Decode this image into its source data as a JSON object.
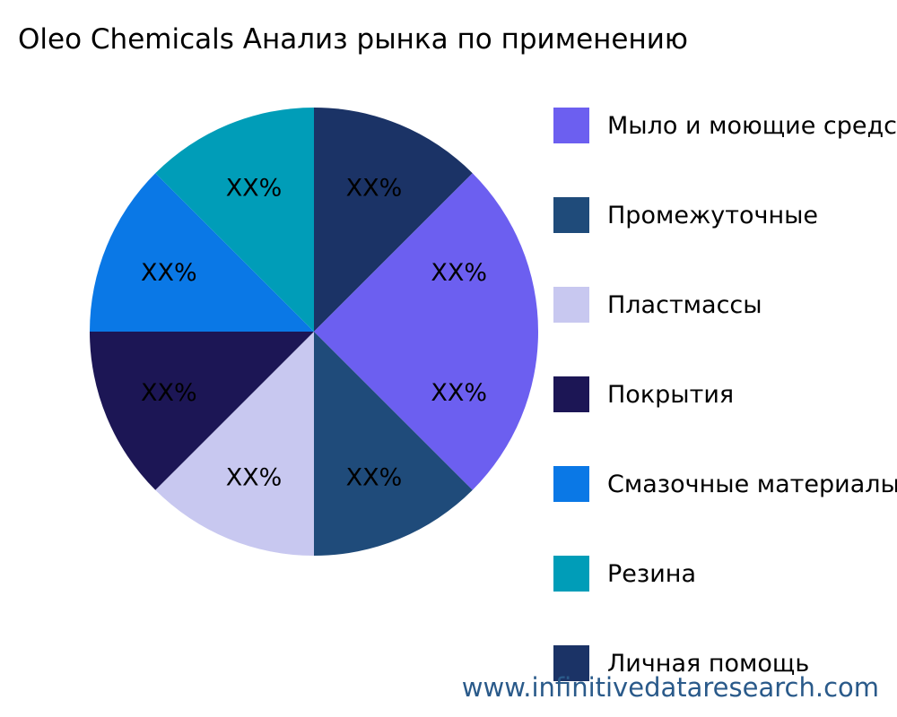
{
  "chart_data": {
    "type": "pie",
    "title": "Oleo Chemicals Анализ рынка по применению",
    "slices": [
      {
        "name": "Личная помощь",
        "value": 12.5,
        "label": "XX%",
        "color": "#1b3366"
      },
      {
        "name": "Мыло и моющие средства",
        "value": 12.5,
        "label": "XX%",
        "color": "#6c5ff0"
      },
      {
        "name": "",
        "value": 12.5,
        "label": "XX%",
        "color": "#6c5ff0"
      },
      {
        "name": "Промежуточные",
        "value": 12.5,
        "label": "XX%",
        "color": "#1f4b7a"
      },
      {
        "name": "Пластмассы",
        "value": 12.5,
        "label": "XX%",
        "color": "#c8c8f0"
      },
      {
        "name": "Покрытия",
        "value": 12.5,
        "label": "XX%",
        "color": "#1c1655"
      },
      {
        "name": "Смазочные материалы",
        "value": 12.5,
        "label": "XX%",
        "color": "#0a78e6"
      },
      {
        "name": "Резина",
        "value": 12.5,
        "label": "XX%",
        "color": "#009db8"
      }
    ],
    "legend": [
      {
        "label": "Мыло и моющие средства",
        "color": "#6c5ff0"
      },
      {
        "label": "Промежуточные",
        "color": "#1f4b7a"
      },
      {
        "label": "Пластмассы",
        "color": "#c8c8f0"
      },
      {
        "label": "Покрытия",
        "color": "#1c1655"
      },
      {
        "label": "Смазочные материалы",
        "color": "#0a78e6"
      },
      {
        "label": "Резина",
        "color": "#009db8"
      },
      {
        "label": "Личная помощь",
        "color": "#1b3366"
      }
    ],
    "legend_position": "right",
    "direction": "clockwise"
  },
  "watermark": "www.infinitivedataresearch.com"
}
